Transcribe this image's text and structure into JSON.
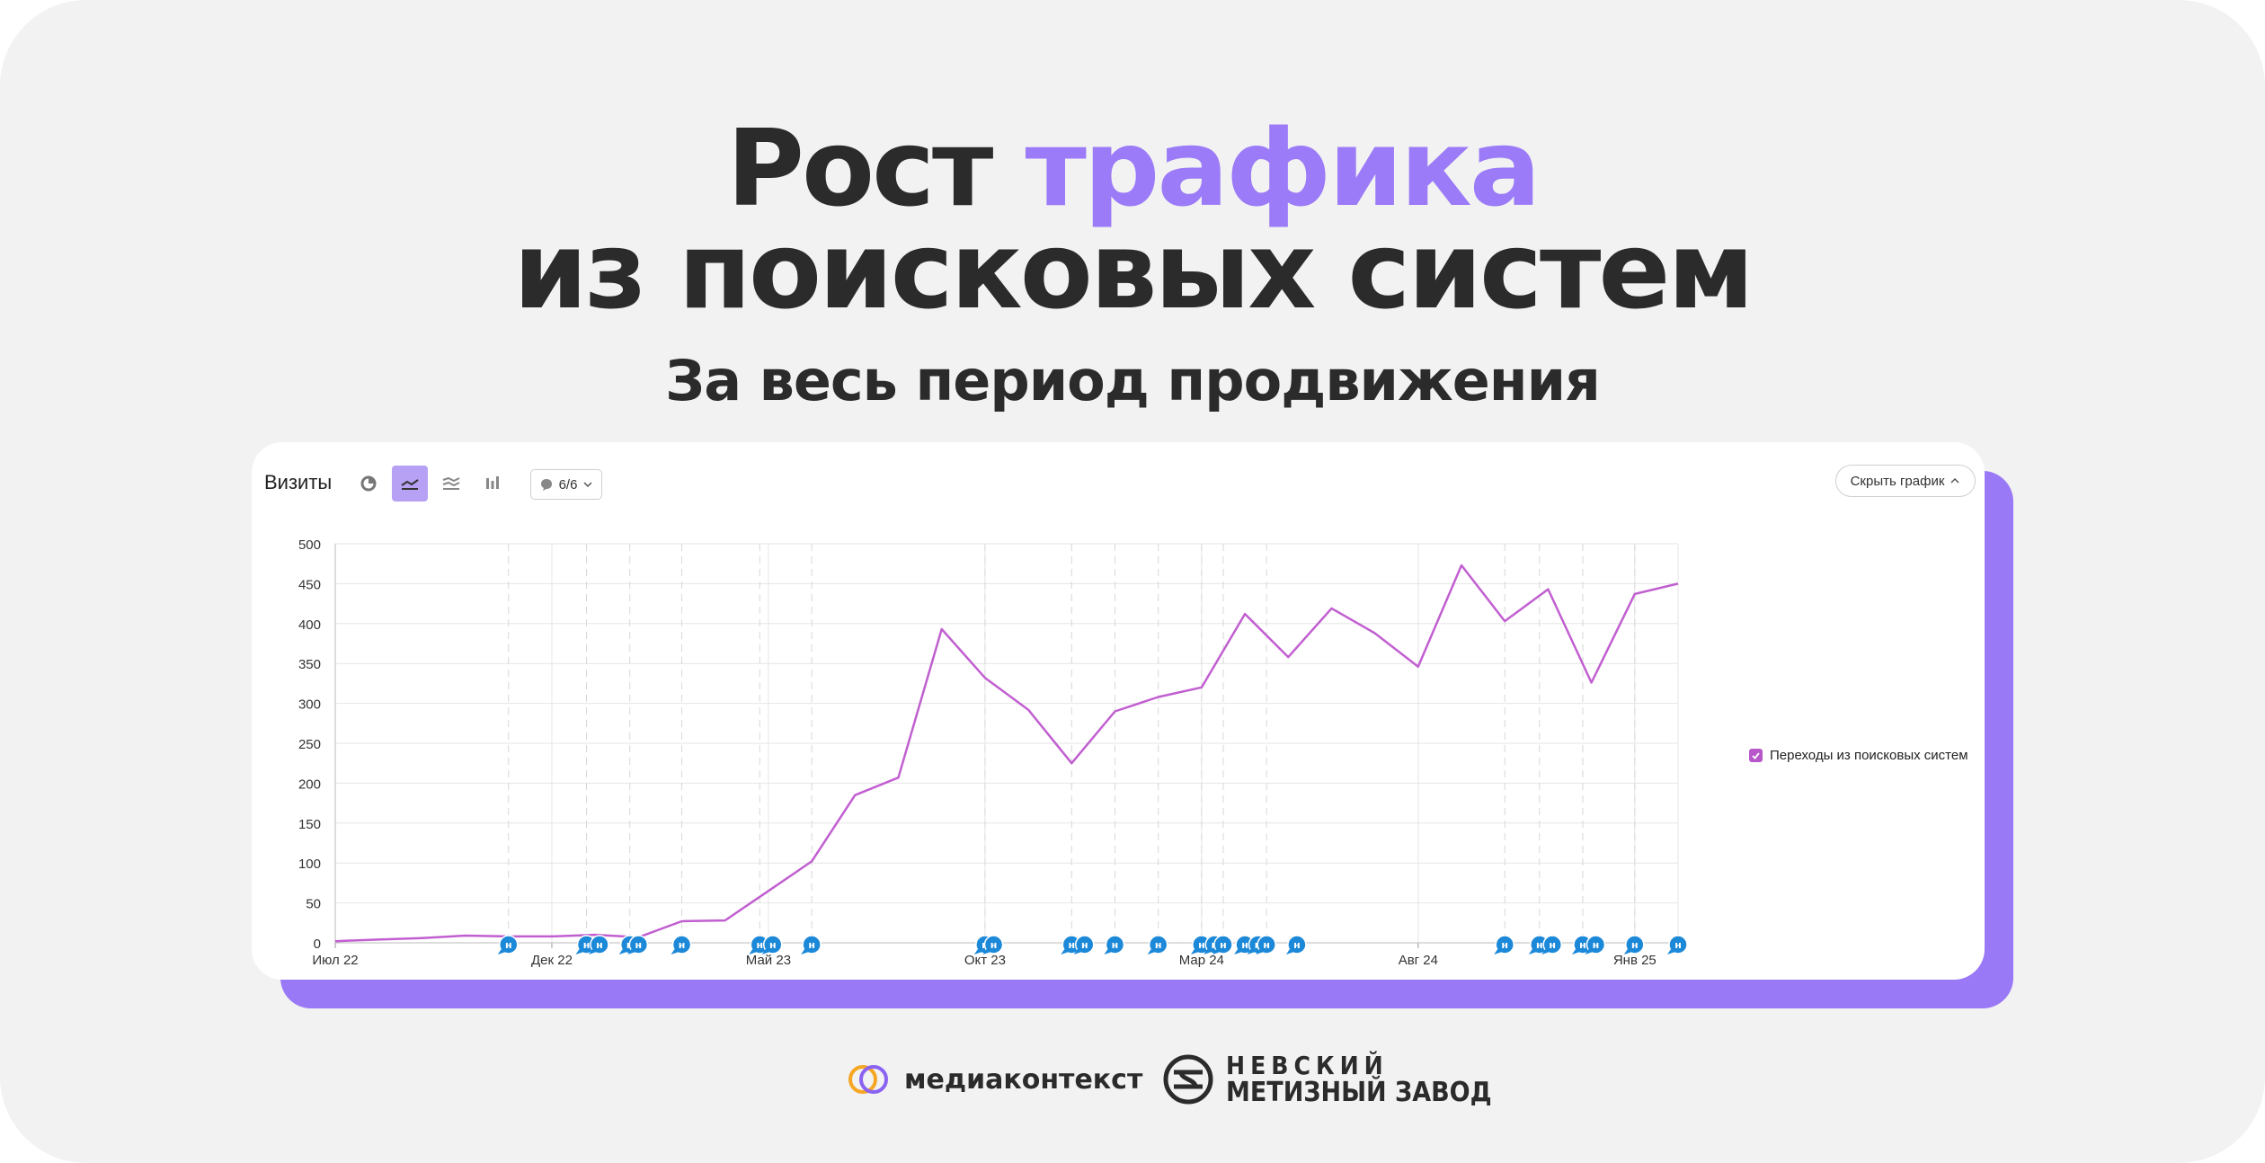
{
  "header": {
    "title_part1": "Рост",
    "title_accent": "трафика",
    "title_line2": "из поисковых систем",
    "subtitle": "За весь период продвижения",
    "accent_color": "#9b7bf7"
  },
  "widget": {
    "title": "Визиты",
    "toolbar": {
      "buttons": [
        "pie-icon",
        "line-chart-icon",
        "area-chart-icon",
        "bar-chart-icon"
      ],
      "active": "line-chart-icon",
      "annotations_counter": "6/6"
    },
    "hide_button": "Скрыть график",
    "legend_label": "Переходы из поисковых систем"
  },
  "chart_data": {
    "type": "line",
    "x": [
      "Июл 22",
      "Авг 22",
      "Сен 22",
      "Окт 22",
      "Ноя 22",
      "Дек 22",
      "Янв 23",
      "Фев 23",
      "Мар 23",
      "Апр 23",
      "Май 23",
      "Июн 23",
      "Июл 23",
      "Авг 23",
      "Сен 23",
      "Окт 23",
      "Ноя 23",
      "Дек 23",
      "Янв 24",
      "Фев 24",
      "Мар 24",
      "Апр 24",
      "Май 24",
      "Июн 24",
      "Июл 24",
      "Авг 24",
      "Сен 24",
      "Окт 24",
      "Ноя 24",
      "Дек 24",
      "Янв 25",
      "Фев 25"
    ],
    "x_tick_labels": [
      "Июл 22",
      "Дек 22",
      "Май 23",
      "Окт 23",
      "Мар 24",
      "Авг 24",
      "Янв 25"
    ],
    "series": [
      {
        "name": "Переходы из поисковых систем",
        "color": "#c15fd0",
        "values": [
          2,
          4,
          6,
          9,
          8,
          8,
          10,
          7,
          27,
          28,
          65,
          102,
          185,
          207,
          393,
          332,
          292,
          225,
          290,
          308,
          320,
          412,
          358,
          419,
          388,
          346,
          473,
          403,
          443,
          326,
          437,
          450
        ]
      }
    ],
    "ylim": [
      0,
      500
    ],
    "y_ticks": [
      0,
      50,
      100,
      150,
      200,
      250,
      300,
      350,
      400,
      450,
      500
    ],
    "grid": true,
    "legend_position": "right",
    "annotation_markers": {
      "color": "#1c88d8",
      "label": "н",
      "positions": [
        4,
        5.8,
        6.1,
        6.8,
        7,
        8,
        9.8,
        10.1,
        11,
        15,
        15.2,
        17,
        17.3,
        18,
        19,
        20,
        20.3,
        20.5,
        21,
        21.3,
        21.5,
        22.2,
        27,
        27.8,
        28.1,
        28.8,
        29.1,
        30,
        31
      ]
    }
  },
  "brands": {
    "brand1": "медиаконтекст",
    "brand2_line1": "НЕВСКИЙ",
    "brand2_line2": "МЕТИЗНЫЙ ЗАВОД"
  }
}
